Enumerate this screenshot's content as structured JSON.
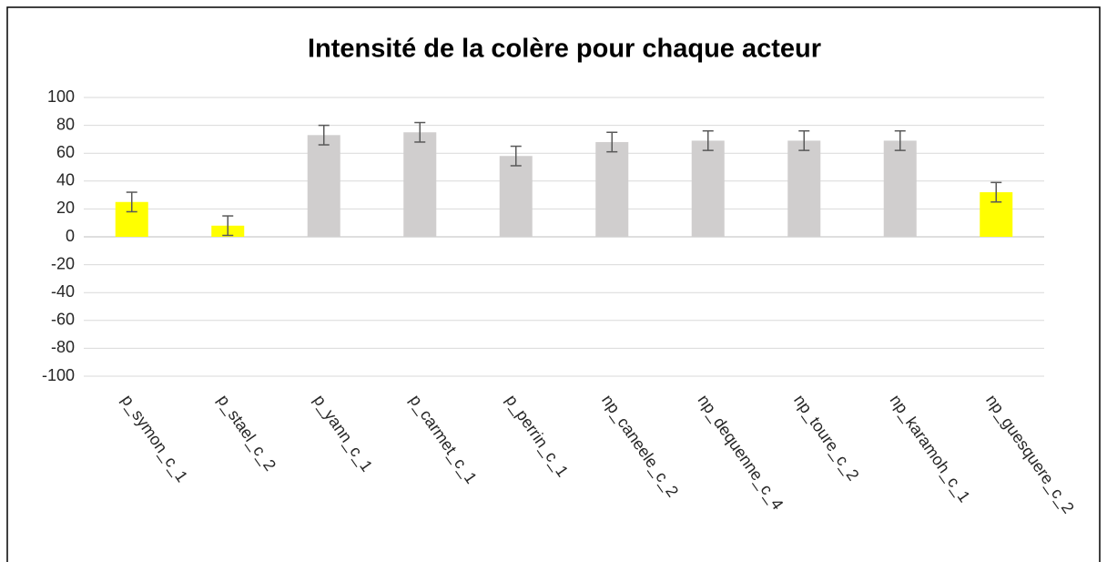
{
  "chart_data": {
    "type": "bar",
    "title": "Intensité de la colère pour chaque acteur",
    "categories": [
      "p_symon_c_1",
      "p_stael_c_2",
      "p_yann_c_1",
      "p_carmet_c_1",
      "p_perrin_c_1",
      "np_caneele_c_2",
      "np_dequenne_c_4",
      "np_toure_c_2",
      "np_karamoh_c_1",
      "np_guesquere_c_2"
    ],
    "values": [
      25,
      8,
      73,
      75,
      58,
      68,
      69,
      69,
      69,
      32
    ],
    "errors": [
      7,
      7,
      7,
      7,
      7,
      7,
      7,
      7,
      7,
      7
    ],
    "colors": [
      "#ffff00",
      "#ffff00",
      "#d0cece",
      "#d0cece",
      "#d0cece",
      "#d0cece",
      "#d0cece",
      "#d0cece",
      "#d0cece",
      "#ffff00"
    ],
    "ylim": [
      -100,
      100
    ],
    "yticks": [
      -100,
      -80,
      -60,
      -40,
      -20,
      0,
      20,
      40,
      60,
      80,
      100
    ],
    "grid": true
  }
}
